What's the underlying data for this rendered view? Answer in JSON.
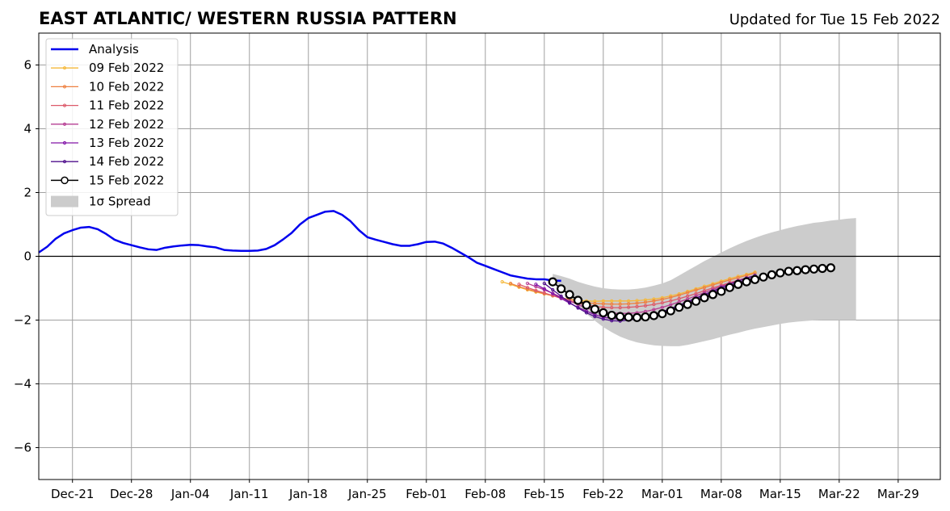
{
  "chart_data": {
    "type": "line",
    "title": "EAST ATLANTIC/ WESTERN RUSSIA PATTERN",
    "subtitle": "Updated for Tue 15 Feb 2022",
    "xlabel": "",
    "ylabel": "",
    "x_ticks": [
      {
        "date": "2021-12-21",
        "label": "Dec-21"
      },
      {
        "date": "2021-12-28",
        "label": "Dec-28"
      },
      {
        "date": "2022-01-04",
        "label": "Jan-04"
      },
      {
        "date": "2022-01-11",
        "label": "Jan-11"
      },
      {
        "date": "2022-01-18",
        "label": "Jan-18"
      },
      {
        "date": "2022-01-25",
        "label": "Jan-25"
      },
      {
        "date": "2022-02-01",
        "label": "Feb-01"
      },
      {
        "date": "2022-02-08",
        "label": "Feb-08"
      },
      {
        "date": "2022-02-15",
        "label": "Feb-15"
      },
      {
        "date": "2022-02-22",
        "label": "Feb-22"
      },
      {
        "date": "2022-03-01",
        "label": "Mar-01"
      },
      {
        "date": "2022-03-08",
        "label": "Mar-08"
      },
      {
        "date": "2022-03-15",
        "label": "Mar-15"
      },
      {
        "date": "2022-03-22",
        "label": "Mar-22"
      },
      {
        "date": "2022-03-29",
        "label": "Mar-29"
      }
    ],
    "y_ticks": [
      {
        "value": 6,
        "label": "6"
      },
      {
        "value": 4,
        "label": "4"
      },
      {
        "value": 2,
        "label": "2"
      },
      {
        "value": 0,
        "label": "0"
      },
      {
        "value": -2,
        "label": "−2"
      },
      {
        "value": -4,
        "label": "−4"
      },
      {
        "value": -6,
        "label": "−6"
      }
    ],
    "xlim": [
      "2021-12-17",
      "2022-04-03"
    ],
    "ylim": [
      -7,
      7
    ],
    "grid": true,
    "legend_position": "top-left",
    "zero_line": true,
    "analysis": {
      "name": "Analysis",
      "color": "#0000ee",
      "start_date": "2021-12-17",
      "values": [
        0.12,
        0.3,
        0.55,
        0.72,
        0.82,
        0.9,
        0.92,
        0.85,
        0.7,
        0.52,
        0.42,
        0.35,
        0.28,
        0.22,
        0.2,
        0.27,
        0.31,
        0.34,
        0.36,
        0.35,
        0.31,
        0.28,
        0.2,
        0.18,
        0.17,
        0.17,
        0.18,
        0.23,
        0.35,
        0.53,
        0.73,
        1.0,
        1.2,
        1.3,
        1.4,
        1.42,
        1.3,
        1.1,
        0.82,
        0.6,
        0.52,
        0.45,
        0.38,
        0.33,
        0.33,
        0.38,
        0.45,
        0.46,
        0.4,
        0.27,
        0.12,
        -0.03,
        -0.2,
        -0.3,
        -0.4,
        -0.5,
        -0.6,
        -0.65,
        -0.7,
        -0.72,
        -0.72,
        -0.76,
        -0.77
      ]
    },
    "forecasts": [
      {
        "name": "09 Feb 2022",
        "color": "#f5b83a",
        "start_date": "2022-02-10",
        "values": [
          -0.8,
          -0.88,
          -0.97,
          -1.05,
          -1.12,
          -1.18,
          -1.24,
          -1.3,
          -1.35,
          -1.38,
          -1.4,
          -1.41,
          -1.4,
          -1.4,
          -1.4,
          -1.4,
          -1.39,
          -1.37,
          -1.34,
          -1.3,
          -1.24,
          -1.18,
          -1.1,
          -1.02,
          -0.94,
          -0.86,
          -0.78,
          -0.7,
          -0.63,
          -0.57,
          -0.5
        ]
      },
      {
        "name": "10 Feb 2022",
        "color": "#ee8040",
        "start_date": "2022-02-11",
        "values": [
          -0.85,
          -0.95,
          -1.03,
          -1.1,
          -1.17,
          -1.23,
          -1.3,
          -1.36,
          -1.41,
          -1.45,
          -1.48,
          -1.49,
          -1.5,
          -1.5,
          -1.49,
          -1.47,
          -1.44,
          -1.4,
          -1.35,
          -1.29,
          -1.22,
          -1.14,
          -1.06,
          -0.98,
          -0.9,
          -0.82,
          -0.74,
          -0.67,
          -0.6,
          -0.53
        ]
      },
      {
        "name": "11 Feb 2022",
        "color": "#dc5a6a",
        "start_date": "2022-02-12",
        "values": [
          -0.88,
          -0.98,
          -1.07,
          -1.15,
          -1.23,
          -1.32,
          -1.4,
          -1.47,
          -1.53,
          -1.57,
          -1.6,
          -1.61,
          -1.61,
          -1.6,
          -1.58,
          -1.55,
          -1.51,
          -1.46,
          -1.4,
          -1.33,
          -1.25,
          -1.17,
          -1.08,
          -0.99,
          -0.91,
          -0.83,
          -0.75,
          -0.67,
          -0.6
        ]
      },
      {
        "name": "12 Feb 2022",
        "color": "#b63e93",
        "start_date": "2022-02-13",
        "values": [
          -0.85,
          -0.95,
          -1.05,
          -1.16,
          -1.28,
          -1.4,
          -1.52,
          -1.62,
          -1.7,
          -1.75,
          -1.78,
          -1.79,
          -1.79,
          -1.77,
          -1.73,
          -1.67,
          -1.6,
          -1.52,
          -1.43,
          -1.34,
          -1.24,
          -1.14,
          -1.04,
          -0.94,
          -0.85,
          -0.76,
          -0.68,
          -0.6
        ]
      },
      {
        "name": "13 Feb 2022",
        "color": "#8214a8",
        "start_date": "2022-02-14",
        "values": [
          -0.88,
          -1.02,
          -1.17,
          -1.32,
          -1.47,
          -1.6,
          -1.72,
          -1.83,
          -1.91,
          -1.95,
          -1.97,
          -1.97,
          -1.94,
          -1.9,
          -1.84,
          -1.76,
          -1.67,
          -1.57,
          -1.46,
          -1.35,
          -1.24,
          -1.13,
          -1.03,
          -0.93,
          -0.83,
          -0.74,
          -0.66
        ]
      },
      {
        "name": "14 Feb 2022",
        "color": "#4f0f8c",
        "start_date": "2022-02-15",
        "values": [
          -0.85,
          -1.05,
          -1.25,
          -1.45,
          -1.62,
          -1.77,
          -1.89,
          -1.97,
          -2.02,
          -2.03,
          -2.0,
          -1.96,
          -1.9,
          -1.83,
          -1.74,
          -1.64,
          -1.53,
          -1.42,
          -1.31,
          -1.2,
          -1.09,
          -0.98,
          -0.88,
          -0.78,
          -0.69,
          -0.6
        ]
      }
    ],
    "current": {
      "name": "15 Feb 2022",
      "color": "#000000",
      "start_date": "2022-02-16",
      "values": [
        -0.8,
        -1.02,
        -1.2,
        -1.38,
        -1.53,
        -1.66,
        -1.77,
        -1.85,
        -1.89,
        -1.91,
        -1.92,
        -1.9,
        -1.86,
        -1.8,
        -1.71,
        -1.6,
        -1.51,
        -1.41,
        -1.3,
        -1.2,
        -1.1,
        -0.98,
        -0.88,
        -0.8,
        -0.73,
        -0.65,
        -0.58,
        -0.52,
        -0.47,
        -0.45,
        -0.42,
        -0.4,
        -0.38,
        -0.36
      ]
    },
    "spread": {
      "name": "1σ Spread",
      "color": "#cccccc",
      "start_date": "2022-02-16",
      "upper": [
        -0.55,
        -0.62,
        -0.7,
        -0.8,
        -0.88,
        -0.95,
        -1.0,
        -1.03,
        -1.04,
        -1.04,
        -1.02,
        -0.98,
        -0.92,
        -0.85,
        -0.75,
        -0.6,
        -0.45,
        -0.3,
        -0.15,
        -0.02,
        0.12,
        0.25,
        0.37,
        0.48,
        0.58,
        0.67,
        0.75,
        0.82,
        0.89,
        0.95,
        1.0,
        1.05,
        1.08,
        1.12,
        1.15,
        1.18,
        1.2
      ],
      "lower": [
        -0.7,
        -1.0,
        -1.28,
        -1.55,
        -1.8,
        -2.02,
        -2.22,
        -2.38,
        -2.52,
        -2.62,
        -2.7,
        -2.75,
        -2.79,
        -2.81,
        -2.82,
        -2.82,
        -2.78,
        -2.72,
        -2.66,
        -2.6,
        -2.53,
        -2.46,
        -2.4,
        -2.33,
        -2.27,
        -2.22,
        -2.17,
        -2.12,
        -2.08,
        -2.05,
        -2.03,
        -2.01,
        -2.0,
        -2.0,
        -2.0,
        -2.0,
        -2.0
      ]
    }
  }
}
